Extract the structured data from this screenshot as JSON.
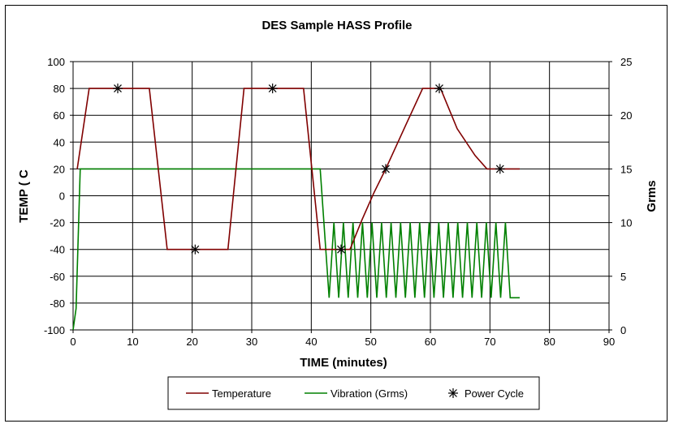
{
  "chart_data": {
    "type": "line",
    "title": "DES Sample HASS Profile",
    "xlabel": "TIME (minutes)",
    "ylabel": "TEMP ( C",
    "y2label": "Grms",
    "xlim": [
      0,
      90
    ],
    "ylim": [
      -100,
      100
    ],
    "y2lim": [
      0,
      25
    ],
    "x_ticks": [
      "0",
      "10",
      "20",
      "30",
      "40",
      "50",
      "60",
      "70",
      "80",
      "90"
    ],
    "y_ticks": [
      "100",
      "80",
      "60",
      "40",
      "20",
      "0",
      "-20",
      "-40",
      "-60",
      "-80",
      "-100"
    ],
    "y2_ticks": [
      "25",
      "20",
      "15",
      "10",
      "5",
      "0"
    ],
    "grid": true,
    "legend_position": "bottom",
    "series": [
      {
        "name": "Temperature",
        "axis": "left",
        "color": "#800000",
        "x": [
          0.7,
          2.7,
          12.8,
          15.8,
          26,
          28.7,
          38.7,
          41.5,
          46.5,
          48.5,
          50.5,
          52.5,
          56,
          58.7,
          61.7,
          64.5,
          67.5,
          69.5,
          72,
          75
        ],
        "y": [
          20,
          80,
          80,
          -40,
          -40,
          80,
          80,
          -40,
          -40,
          -18,
          2,
          20,
          54,
          80,
          80,
          50,
          30,
          20,
          20,
          20
        ]
      },
      {
        "name": "Vibration (Grms)",
        "axis": "right",
        "color": "#008000",
        "x": [
          0,
          0.5,
          1.2,
          41.5,
          43,
          43.8,
          44.6,
          45.4,
          46.2,
          47,
          47.8,
          48.6,
          49.4,
          50.2,
          51,
          51.8,
          52.6,
          53.4,
          54.2,
          55,
          55.8,
          56.6,
          57.4,
          58.2,
          59,
          59.8,
          60.6,
          61.4,
          62.2,
          63,
          63.8,
          64.6,
          65.4,
          66.2,
          67,
          67.8,
          68.6,
          69.4,
          70.2,
          71,
          71.8,
          72.6,
          73.4,
          74.2,
          75
        ],
        "y": [
          0,
          2,
          15,
          15,
          3,
          10,
          3,
          10,
          3,
          10,
          3,
          10,
          3,
          10,
          3,
          10,
          3,
          10,
          3,
          10,
          3,
          10,
          3,
          10,
          3,
          10,
          3,
          10,
          3,
          10,
          3,
          10,
          3,
          10,
          3,
          10,
          3,
          10,
          3,
          10,
          3,
          10,
          3,
          3,
          3
        ]
      },
      {
        "name": "Power Cycle",
        "axis": "left",
        "marker": "asterisk",
        "color": "#000000",
        "x": [
          7.5,
          20.5,
          33.5,
          45,
          52.5,
          61.5,
          71.7
        ],
        "y": [
          80,
          -40,
          80,
          -40,
          20,
          80,
          20
        ]
      }
    ]
  }
}
